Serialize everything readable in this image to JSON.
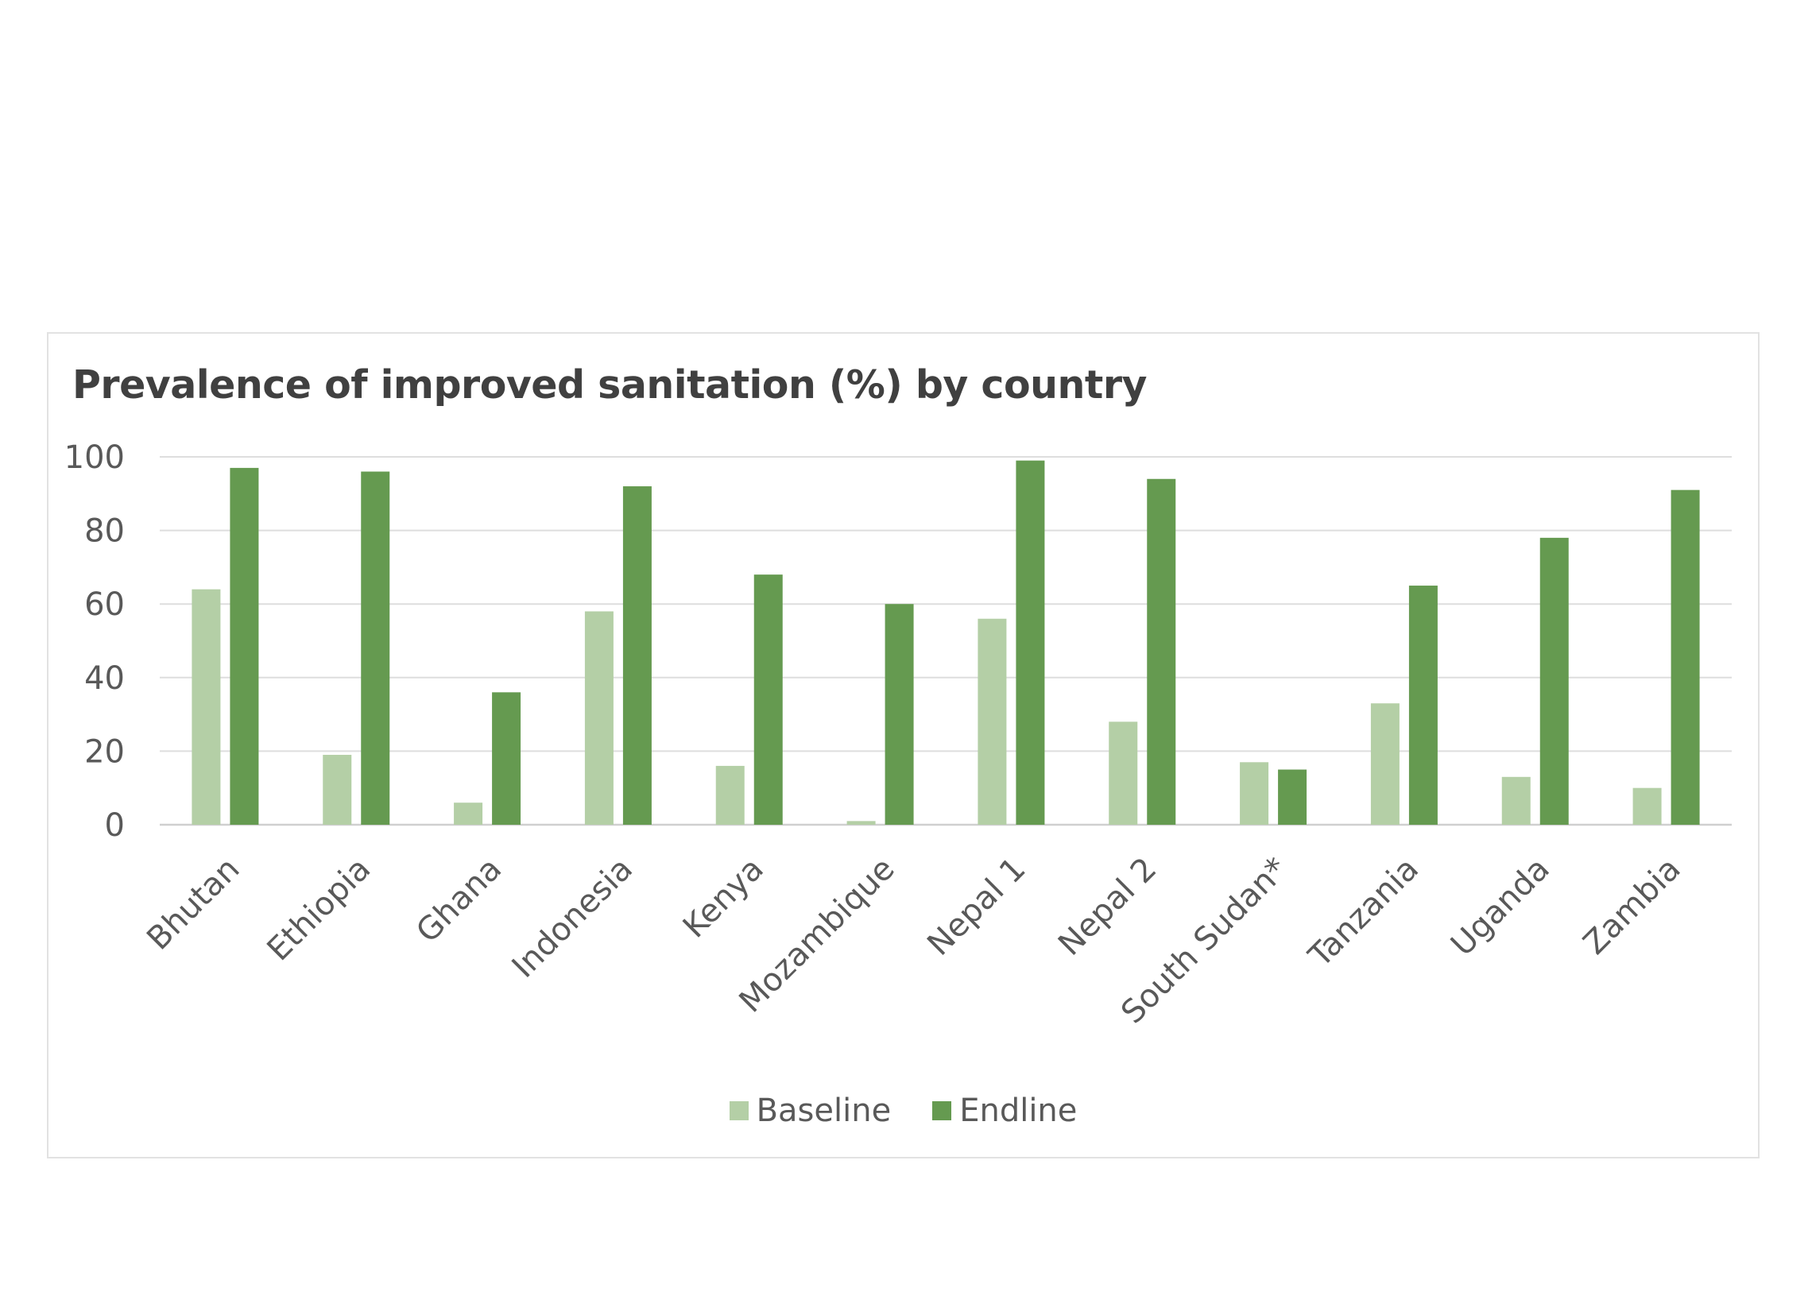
{
  "chart_data": {
    "type": "bar",
    "title": "Prevalence of improved sanitation (%) by country",
    "xlabel": "",
    "ylabel": "",
    "ylim": [
      0,
      100
    ],
    "yticks": [
      0,
      20,
      40,
      60,
      80,
      100
    ],
    "grid": true,
    "legend_position": "bottom",
    "categories": [
      "Bhutan",
      "Ethiopia",
      "Ghana",
      "Indonesia",
      "Kenya",
      "Mozambique",
      "Nepal 1",
      "Nepal 2",
      "South Sudan*",
      "Tanzania",
      "Uganda",
      "Zambia"
    ],
    "series": [
      {
        "name": "Baseline",
        "color": "#b4cfa6",
        "values": [
          64,
          19,
          6,
          58,
          16,
          1,
          56,
          28,
          17,
          33,
          13,
          10
        ]
      },
      {
        "name": "Endline",
        "color": "#659a50",
        "values": [
          97,
          96,
          36,
          92,
          68,
          60,
          99,
          94,
          15,
          65,
          78,
          91
        ]
      }
    ]
  }
}
